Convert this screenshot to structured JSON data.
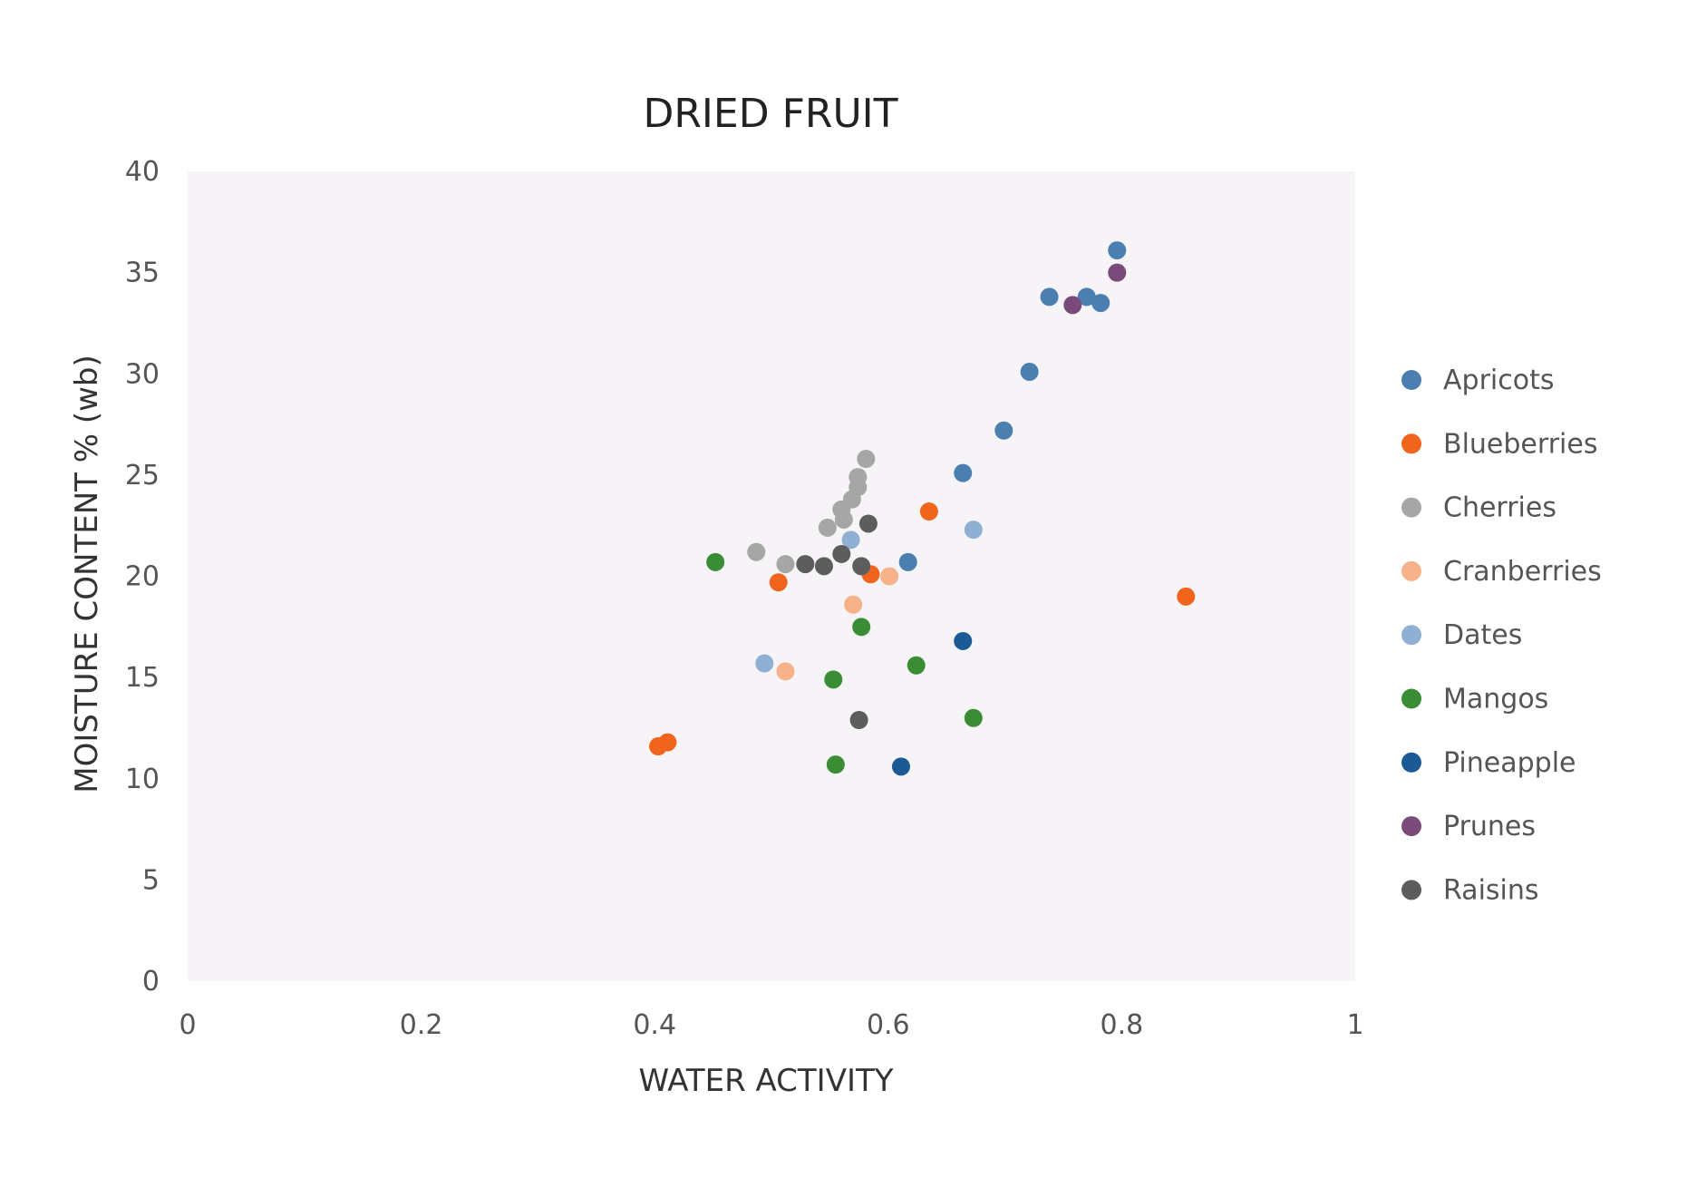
{
  "chart_data": {
    "type": "scatter",
    "title": "DRIED FRUIT",
    "xlabel": "WATER ACTIVITY",
    "ylabel": "MOISTURE CONTENT % (wb)",
    "xlim": [
      0,
      1
    ],
    "ylim": [
      0,
      40
    ],
    "xticks": [
      0,
      0.2,
      0.4,
      0.6,
      0.8,
      1
    ],
    "xtick_labels": [
      "0",
      "0.2",
      "0.4",
      "0.6",
      "0.8",
      "1"
    ],
    "yticks": [
      0,
      5,
      10,
      15,
      20,
      25,
      30,
      35,
      40
    ],
    "ytick_labels": [
      "0",
      "5",
      "10",
      "15",
      "20",
      "25",
      "30",
      "35",
      "40"
    ],
    "grid": false,
    "legend": "right",
    "series": [
      {
        "name": "Apricots",
        "color": "#4a7fb0",
        "points": [
          [
            0.796,
            36.1
          ],
          [
            0.738,
            33.8
          ],
          [
            0.77,
            33.8
          ],
          [
            0.782,
            33.5
          ],
          [
            0.721,
            30.1
          ],
          [
            0.699,
            27.2
          ],
          [
            0.664,
            25.1
          ],
          [
            0.617,
            20.7
          ]
        ]
      },
      {
        "name": "Blueberries",
        "color": "#f0641e",
        "points": [
          [
            0.635,
            23.2
          ],
          [
            0.506,
            19.7
          ],
          [
            0.585,
            20.1
          ],
          [
            0.855,
            19.0
          ],
          [
            0.403,
            11.6
          ],
          [
            0.411,
            11.8
          ]
        ]
      },
      {
        "name": "Cherries",
        "color": "#a6a6a6",
        "points": [
          [
            0.581,
            25.8
          ],
          [
            0.574,
            24.9
          ],
          [
            0.574,
            24.4
          ],
          [
            0.569,
            23.8
          ],
          [
            0.56,
            23.3
          ],
          [
            0.562,
            22.8
          ],
          [
            0.548,
            22.4
          ],
          [
            0.487,
            21.2
          ],
          [
            0.512,
            20.6
          ]
        ]
      },
      {
        "name": "Cranberries",
        "color": "#f7b28a",
        "points": [
          [
            0.601,
            20.0
          ],
          [
            0.57,
            18.6
          ],
          [
            0.512,
            15.3
          ]
        ]
      },
      {
        "name": "Dates",
        "color": "#8fb0d3",
        "points": [
          [
            0.568,
            21.8
          ],
          [
            0.673,
            22.3
          ],
          [
            0.494,
            15.7
          ]
        ]
      },
      {
        "name": "Mangos",
        "color": "#3a8c35",
        "points": [
          [
            0.452,
            20.7
          ],
          [
            0.577,
            17.5
          ],
          [
            0.624,
            15.6
          ],
          [
            0.553,
            14.9
          ],
          [
            0.673,
            13.0
          ],
          [
            0.555,
            10.7
          ]
        ]
      },
      {
        "name": "Pineapple",
        "color": "#1c5a96",
        "points": [
          [
            0.664,
            16.8
          ],
          [
            0.611,
            10.6
          ]
        ]
      },
      {
        "name": "Prunes",
        "color": "#7a4b7a",
        "points": [
          [
            0.796,
            35.0
          ],
          [
            0.758,
            33.4
          ]
        ]
      },
      {
        "name": "Raisins",
        "color": "#5d5d5d",
        "points": [
          [
            0.583,
            22.6
          ],
          [
            0.56,
            21.1
          ],
          [
            0.529,
            20.6
          ],
          [
            0.545,
            20.5
          ],
          [
            0.577,
            20.5
          ],
          [
            0.575,
            12.9
          ]
        ]
      }
    ]
  }
}
